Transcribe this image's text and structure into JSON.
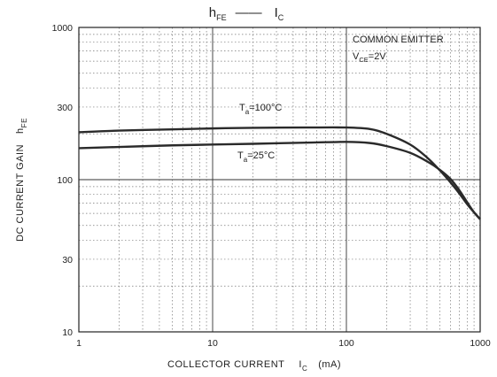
{
  "chart_data": {
    "type": "line",
    "title": {
      "y_symbol": "h",
      "y_sub": "FE",
      "dash": "——",
      "x_symbol": "I",
      "x_sub": "C"
    },
    "ylabel": {
      "text": "DC CURRENT GAIN",
      "symbol": "h",
      "sub": "FE"
    },
    "xlabel": {
      "text": "COLLECTOR CURRENT",
      "symbol": "I",
      "sub": "C",
      "unit": "(mA)"
    },
    "x_scale": "log",
    "y_scale": "log",
    "xlim": [
      1,
      1000
    ],
    "ylim": [
      10,
      1000
    ],
    "x_ticks": [
      "1",
      "10",
      "100",
      "1000"
    ],
    "y_ticks": [
      "10",
      "30",
      "100",
      "300",
      "1000"
    ],
    "grid": true,
    "annotation": {
      "line1": "COMMON EMITTER",
      "line2_symbol": "V",
      "line2_sub": "CE",
      "line2_value": "=2V"
    },
    "series": [
      {
        "label_symbol": "T",
        "label_sub": "a",
        "label_value": "=100°C",
        "x": [
          1,
          2,
          5,
          10,
          20,
          50,
          100,
          150,
          200,
          300,
          400,
          500,
          600,
          700,
          800,
          900,
          1000
        ],
        "y": [
          205,
          210,
          214,
          217,
          219,
          220,
          220,
          215,
          200,
          170,
          140,
          115,
          96,
          81,
          69,
          61,
          55
        ]
      },
      {
        "label_symbol": "T",
        "label_sub": "a",
        "label_value": "=25°C",
        "x": [
          1,
          2,
          5,
          10,
          20,
          50,
          100,
          150,
          200,
          300,
          400,
          500,
          600,
          700,
          800,
          900,
          1000
        ],
        "y": [
          161,
          164,
          168,
          170,
          172,
          175,
          177,
          174,
          166,
          150,
          132,
          116,
          101,
          85,
          71,
          61,
          55
        ]
      }
    ]
  }
}
